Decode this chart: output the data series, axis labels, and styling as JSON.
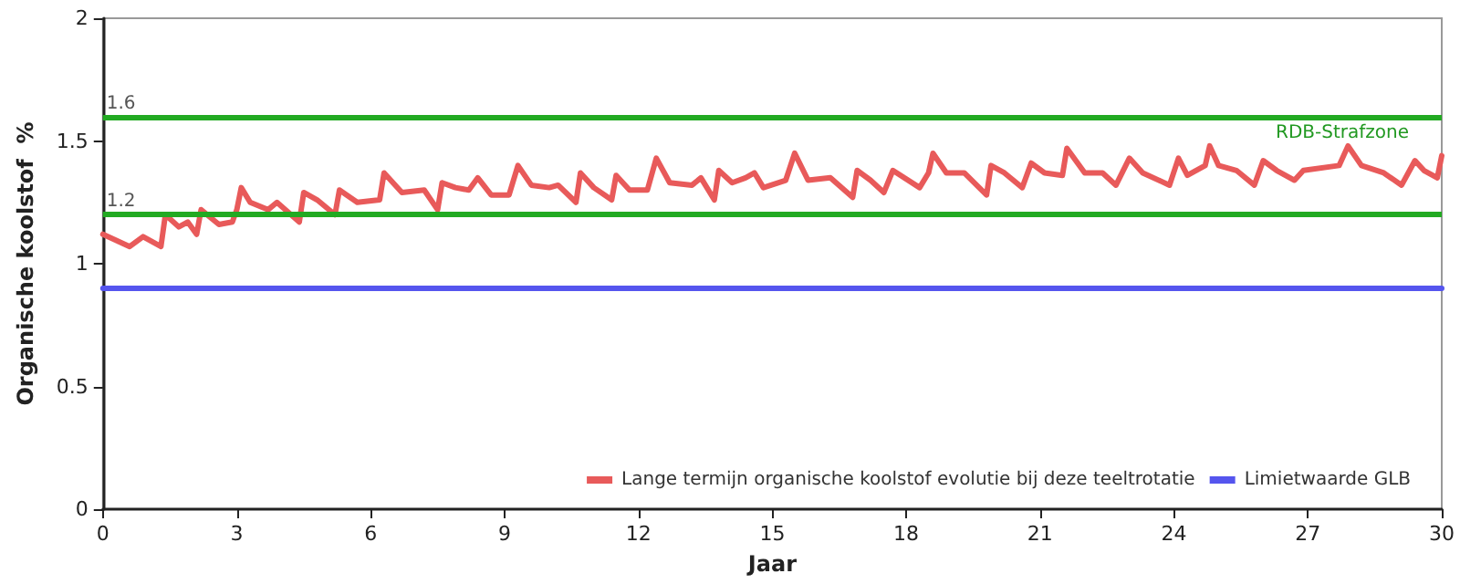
{
  "chart_data": {
    "type": "line",
    "xlabel": "Jaar",
    "ylabel": "Organische koolstof  %",
    "xlim": [
      0,
      30
    ],
    "xticks": [
      0,
      3,
      6,
      9,
      12,
      15,
      18,
      21,
      24,
      27,
      30
    ],
    "ylim": [
      0,
      2
    ],
    "yticks": [
      0,
      0.5,
      1,
      1.5,
      2
    ],
    "grid": false,
    "legend": "bottom right",
    "marker": "none",
    "line_style": "solid",
    "series": [
      {
        "name": "Lange termijn organische koolstof evolutie bij deze teeltrotatie",
        "color": "#e85a5a",
        "x": [
          0,
          0.6,
          0.9,
          1.3,
          1.4,
          1.7,
          1.9,
          2.1,
          2.2,
          2.6,
          2.9,
          3.0,
          3.1,
          3.3,
          3.7,
          3.9,
          4.4,
          4.5,
          4.8,
          5.2,
          5.3,
          5.7,
          6.2,
          6.3,
          6.7,
          7.2,
          7.5,
          7.6,
          7.9,
          8.2,
          8.4,
          8.7,
          9.1,
          9.3,
          9.6,
          10.0,
          10.2,
          10.6,
          10.7,
          11.0,
          11.4,
          11.5,
          11.8,
          12.2,
          12.4,
          12.7,
          13.2,
          13.4,
          13.7,
          13.8,
          14.1,
          14.4,
          14.6,
          14.8,
          15.3,
          15.5,
          15.8,
          16.3,
          16.8,
          16.9,
          17.2,
          17.5,
          17.7,
          18.3,
          18.5,
          18.6,
          18.9,
          19.3,
          19.8,
          19.9,
          20.2,
          20.6,
          20.8,
          21.1,
          21.5,
          21.6,
          22.0,
          22.4,
          22.7,
          23.0,
          23.3,
          23.9,
          24.1,
          24.3,
          24.7,
          24.8,
          25.0,
          25.4,
          25.8,
          26.0,
          26.3,
          26.7,
          26.9,
          27.7,
          27.9,
          28.2,
          28.7,
          29.1,
          29.4,
          29.6,
          29.9,
          30.0
        ],
        "values": [
          1.12,
          1.07,
          1.11,
          1.07,
          1.2,
          1.15,
          1.17,
          1.12,
          1.22,
          1.16,
          1.17,
          1.22,
          1.31,
          1.25,
          1.22,
          1.25,
          1.17,
          1.29,
          1.26,
          1.2,
          1.3,
          1.25,
          1.26,
          1.37,
          1.29,
          1.3,
          1.22,
          1.33,
          1.31,
          1.3,
          1.35,
          1.28,
          1.28,
          1.4,
          1.32,
          1.31,
          1.32,
          1.25,
          1.37,
          1.31,
          1.26,
          1.36,
          1.3,
          1.3,
          1.43,
          1.33,
          1.32,
          1.35,
          1.26,
          1.38,
          1.33,
          1.35,
          1.37,
          1.31,
          1.34,
          1.45,
          1.34,
          1.35,
          1.27,
          1.38,
          1.34,
          1.29,
          1.38,
          1.31,
          1.37,
          1.45,
          1.37,
          1.37,
          1.28,
          1.4,
          1.37,
          1.31,
          1.41,
          1.37,
          1.36,
          1.47,
          1.37,
          1.37,
          1.32,
          1.43,
          1.37,
          1.32,
          1.43,
          1.36,
          1.4,
          1.48,
          1.4,
          1.38,
          1.32,
          1.42,
          1.38,
          1.34,
          1.38,
          1.4,
          1.48,
          1.4,
          1.37,
          1.32,
          1.42,
          1.38,
          1.35,
          1.44
        ]
      },
      {
        "name": "Limietwaarde GLB",
        "color": "#5555ee",
        "x": [
          0,
          30
        ],
        "values": [
          0.9,
          0.9
        ]
      }
    ],
    "ref_lines": [
      {
        "axis": "y",
        "value": 1.2,
        "label": "1.2",
        "color": "#22aa22"
      },
      {
        "axis": "y",
        "value": 1.6,
        "label": "1.6",
        "color": "#22aa22"
      }
    ],
    "annotations": [
      "RDB-Strafzone"
    ]
  }
}
